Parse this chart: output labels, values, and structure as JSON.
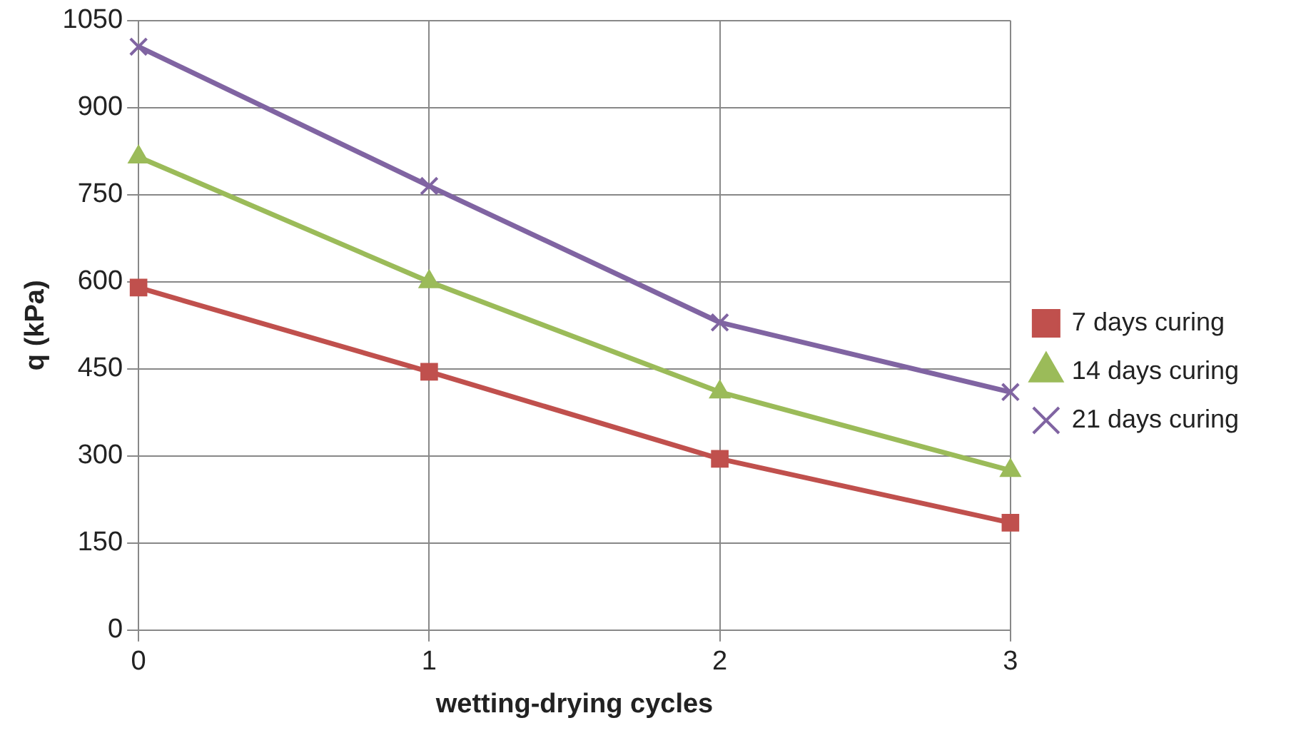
{
  "chart_data": {
    "type": "line",
    "xlabel": "wetting-drying cycles",
    "ylabel": "q (kPa)",
    "x": [
      0,
      1,
      2,
      3
    ],
    "series": [
      {
        "name": "7 days curing",
        "color": "#c0504d",
        "marker": "square",
        "values": [
          590,
          445,
          295,
          185
        ]
      },
      {
        "name": "14 days curing",
        "color": "#9bbb59",
        "marker": "triangle",
        "values": [
          815,
          600,
          410,
          275
        ]
      },
      {
        "name": "21 days curing",
        "color": "#8064a2",
        "marker": "cross",
        "values": [
          1005,
          765,
          530,
          410
        ]
      }
    ],
    "xlim": [
      0,
      3
    ],
    "xticks": [
      0,
      1,
      2,
      3
    ],
    "ylim": [
      0,
      1050
    ],
    "yticks": [
      0,
      150,
      300,
      450,
      600,
      750,
      900,
      1050
    ],
    "grid": true,
    "legend": "right",
    "line_style": "solid"
  }
}
